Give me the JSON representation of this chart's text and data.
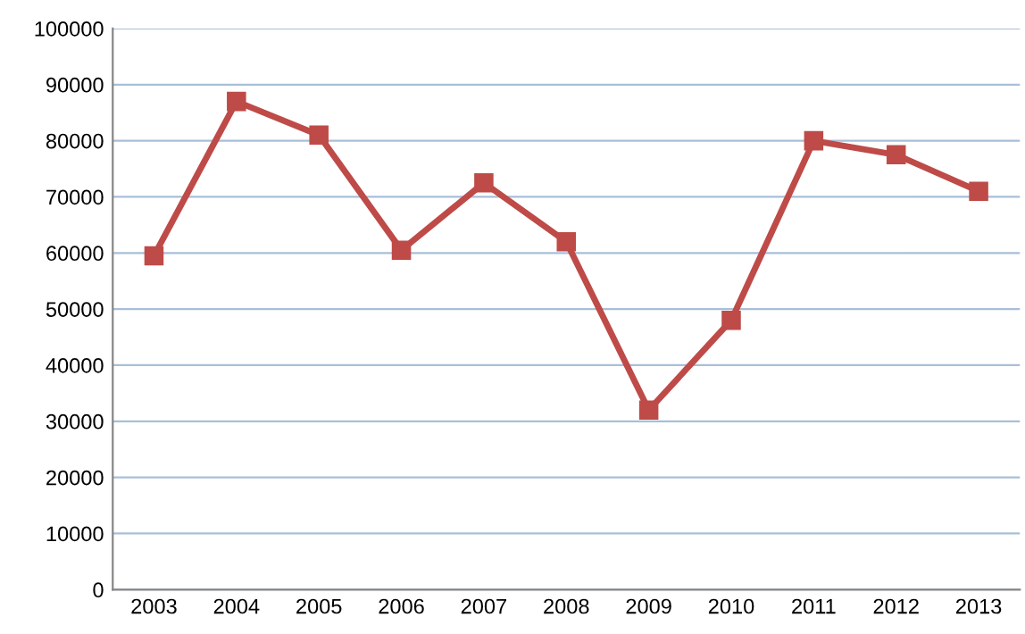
{
  "chart_data": {
    "type": "line",
    "categories": [
      "2003",
      "2004",
      "2005",
      "2006",
      "2007",
      "2008",
      "2009",
      "2010",
      "2011",
      "2012",
      "2013"
    ],
    "series": [
      {
        "color": "#be4b48",
        "values": [
          59500,
          87000,
          81000,
          60500,
          72500,
          62000,
          32000,
          48000,
          80000,
          77500,
          71000
        ]
      }
    ],
    "ylim": [
      0,
      100000
    ],
    "yticks": [
      0,
      10000,
      20000,
      30000,
      40000,
      50000,
      60000,
      70000,
      80000,
      90000,
      100000
    ],
    "grid": "y",
    "marker": "square",
    "line_style": "solid",
    "legend": false
  }
}
